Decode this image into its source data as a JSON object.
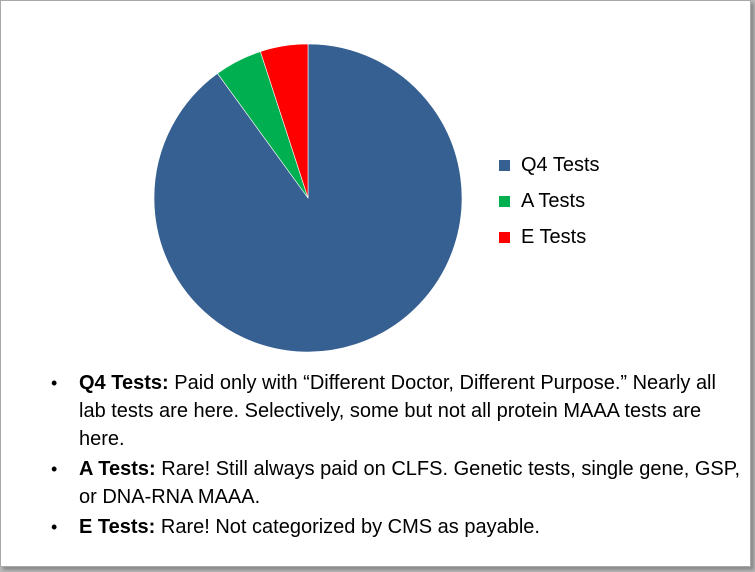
{
  "chart_data": {
    "type": "pie",
    "series": [
      {
        "name": "Q4 Tests",
        "value": 90,
        "color": "#376092"
      },
      {
        "name": "A Tests",
        "value": 5,
        "color": "#00b050"
      },
      {
        "name": "E Tests",
        "value": 5,
        "color": "#ff0000"
      }
    ],
    "legend_position": "right"
  },
  "legend": {
    "items": [
      "Q4 Tests",
      "A Tests",
      "E Tests"
    ]
  },
  "bullets": [
    {
      "term": "Q4 Tests:",
      "text": " Paid only with “Different Doctor, Different Purpose.” Nearly all lab tests are here.  Selectively, some but not all protein MAAA tests are here."
    },
    {
      "term": "A Tests:",
      "text": " Rare!  Still always paid on CLFS.  Genetic tests, single gene, GSP, or DNA-RNA MAAA."
    },
    {
      "term": "E Tests:",
      "text": "  Rare!  Not categorized by CMS as payable."
    }
  ],
  "bullet_char": "•"
}
